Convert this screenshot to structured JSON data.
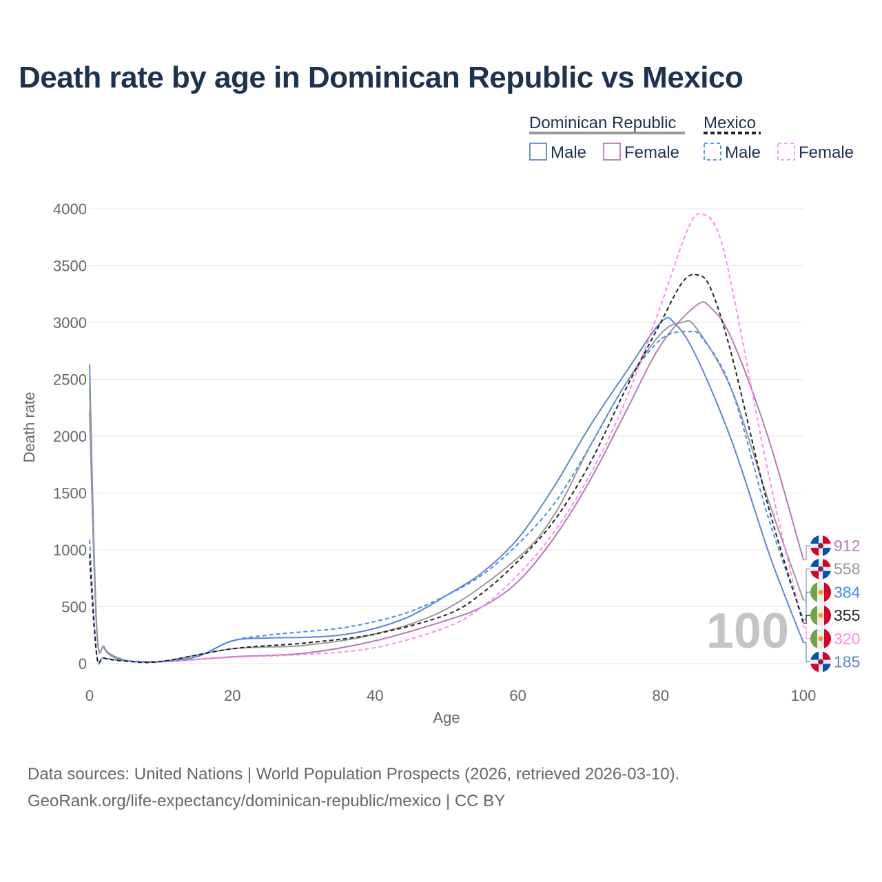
{
  "chart_data": {
    "type": "line",
    "title": "Death rate by age in Dominican Republic vs Mexico",
    "xlabel": "Age",
    "ylabel": "Death rate",
    "xlim": [
      0,
      100
    ],
    "ylim": [
      0,
      4000
    ],
    "xticks": [
      "0",
      "20",
      "40",
      "60",
      "80",
      "100"
    ],
    "yticks": [
      "0",
      "500",
      "1000",
      "1500",
      "2000",
      "2500",
      "3000",
      "3500",
      "4000"
    ],
    "watermark": "100",
    "legend": {
      "groups": [
        {
          "name": "Dominican Republic",
          "items": [
            "Male",
            "Female"
          ]
        },
        {
          "name": "Mexico",
          "items": [
            "Male",
            "Female"
          ]
        }
      ],
      "placement": "top-right"
    },
    "series": [
      {
        "name": "Dominican Republic Male",
        "country": "Dominican Republic",
        "color": "#5a86d3",
        "dash": false,
        "end_label": "185",
        "x": [
          0,
          1,
          2,
          3,
          5,
          7,
          10,
          15,
          20,
          25,
          30,
          35,
          40,
          45,
          50,
          55,
          60,
          65,
          70,
          75,
          80,
          82,
          85,
          90,
          95,
          98,
          100
        ],
        "y": [
          2630,
          320,
          150,
          80,
          30,
          15,
          20,
          60,
          200,
          225,
          230,
          250,
          310,
          420,
          600,
          800,
          1100,
          1550,
          2080,
          2550,
          3000,
          2990,
          2700,
          1950,
          1000,
          500,
          185
        ]
      },
      {
        "name": "Dominican Republic Female",
        "country": "Dominican Republic",
        "color": "#b57ab4",
        "dash": false,
        "end_label": "912",
        "x": [
          0,
          1,
          2,
          3,
          5,
          10,
          20,
          30,
          40,
          50,
          55,
          60,
          65,
          70,
          75,
          80,
          85,
          87,
          90,
          95,
          100
        ],
        "y": [
          2220,
          300,
          140,
          70,
          25,
          15,
          60,
          90,
          200,
          380,
          500,
          720,
          1100,
          1600,
          2200,
          2800,
          3150,
          3130,
          2850,
          2000,
          912
        ]
      },
      {
        "name": "Dominican Republic Total",
        "country": "Dominican Republic",
        "color": "#999999",
        "dash": false,
        "end_label": "558",
        "x": [
          0,
          1,
          2,
          3,
          5,
          10,
          20,
          30,
          40,
          50,
          60,
          65,
          70,
          75,
          80,
          83,
          85,
          90,
          95,
          100
        ],
        "y": [
          2430,
          310,
          145,
          75,
          28,
          18,
          130,
          160,
          260,
          480,
          930,
          1300,
          1900,
          2450,
          2900,
          3000,
          2950,
          2400,
          1450,
          558
        ]
      },
      {
        "name": "Mexico Male",
        "country": "Mexico",
        "color": "#3f8cf5",
        "dash": true,
        "end_label": "384",
        "x": [
          0,
          1,
          2,
          5,
          10,
          15,
          20,
          25,
          30,
          35,
          40,
          45,
          50,
          55,
          60,
          65,
          70,
          75,
          80,
          84,
          86,
          90,
          95,
          100
        ],
        "y": [
          1090,
          80,
          50,
          25,
          20,
          60,
          200,
          250,
          280,
          310,
          370,
          460,
          600,
          780,
          1050,
          1400,
          1900,
          2450,
          2850,
          2920,
          2850,
          2400,
          1300,
          384
        ]
      },
      {
        "name": "Mexico Female",
        "country": "Mexico",
        "color": "#ff88ee",
        "dash": true,
        "end_label": "320",
        "x": [
          0,
          1,
          2,
          5,
          10,
          20,
          30,
          40,
          50,
          55,
          60,
          65,
          70,
          75,
          80,
          84,
          86,
          88,
          90,
          95,
          100
        ],
        "y": [
          900,
          70,
          45,
          20,
          15,
          55,
          80,
          140,
          320,
          500,
          780,
          1150,
          1650,
          2300,
          3150,
          3850,
          3950,
          3800,
          3300,
          1700,
          320
        ]
      },
      {
        "name": "Mexico Total",
        "country": "Mexico",
        "color": "#222222",
        "dash": true,
        "end_label": "355",
        "x": [
          0,
          1,
          2,
          5,
          10,
          20,
          30,
          40,
          50,
          55,
          60,
          65,
          70,
          75,
          80,
          83,
          85,
          87,
          90,
          95,
          100
        ],
        "y": [
          960,
          75,
          48,
          22,
          18,
          130,
          180,
          260,
          430,
          620,
          900,
          1250,
          1750,
          2400,
          3000,
          3350,
          3420,
          3300,
          2700,
          1400,
          355
        ]
      }
    ]
  },
  "footer": {
    "line1": "Data sources: United Nations | World Population Prospects (2026, retrieved 2026-03-10).",
    "line2": "GeoRank.org/life-expectancy/dominican-republic/mexico | CC BY"
  }
}
